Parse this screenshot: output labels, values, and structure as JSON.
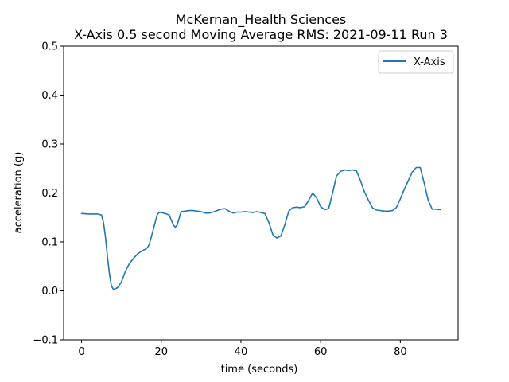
{
  "chart_data": {
    "type": "line",
    "title_line1": "McKernan_Health Sciences",
    "title_line2": "X-Axis 0.5 second Moving Average RMS: 2021-09-11 Run 3",
    "xlabel": "time (seconds)",
    "ylabel": "acceleration (g)",
    "xlim": [
      -4.5,
      94.5
    ],
    "ylim": [
      -0.1,
      0.5
    ],
    "xticks": [
      0,
      20,
      40,
      60,
      80
    ],
    "xtick_labels": [
      "0",
      "20",
      "40",
      "60",
      "80"
    ],
    "yticks": [
      -0.1,
      0.0,
      0.1,
      0.2,
      0.3,
      0.4,
      0.5
    ],
    "ytick_labels": [
      "−0.1",
      "0.0",
      "0.1",
      "0.2",
      "0.3",
      "0.4",
      "0.5"
    ],
    "grid": false,
    "legend_position": "upper right",
    "series": [
      {
        "name": "X-Axis",
        "color": "#1f77b4",
        "x": [
          0,
          2,
          4,
          5,
          5.5,
          6,
          6.5,
          7,
          7.5,
          8,
          9,
          10,
          11,
          12,
          13,
          14,
          15,
          16,
          16.5,
          17,
          18,
          19,
          19.5,
          20,
          21,
          22,
          23,
          23.5,
          24,
          25,
          26,
          27,
          28,
          29,
          30,
          31,
          32,
          33,
          34,
          35,
          36,
          37,
          38,
          39,
          40,
          41,
          42,
          43,
          44,
          45,
          46,
          47,
          48,
          49,
          50,
          51,
          52,
          53,
          54,
          55,
          56,
          57,
          58,
          59,
          60,
          61,
          62,
          63,
          64,
          65,
          66,
          67,
          68,
          69,
          70,
          71,
          72,
          73,
          74,
          75,
          76,
          77,
          78,
          79,
          80,
          81,
          82,
          83,
          84,
          85,
          86,
          87,
          88,
          89,
          90
        ],
        "y": [
          0.158,
          0.157,
          0.157,
          0.155,
          0.14,
          0.11,
          0.07,
          0.035,
          0.01,
          0.003,
          0.006,
          0.018,
          0.04,
          0.056,
          0.066,
          0.075,
          0.081,
          0.085,
          0.088,
          0.095,
          0.125,
          0.156,
          0.16,
          0.16,
          0.158,
          0.155,
          0.135,
          0.13,
          0.135,
          0.162,
          0.163,
          0.164,
          0.164,
          0.163,
          0.162,
          0.159,
          0.159,
          0.161,
          0.164,
          0.167,
          0.168,
          0.163,
          0.159,
          0.161,
          0.161,
          0.162,
          0.161,
          0.16,
          0.162,
          0.16,
          0.158,
          0.14,
          0.115,
          0.108,
          0.112,
          0.135,
          0.163,
          0.17,
          0.171,
          0.17,
          0.172,
          0.185,
          0.2,
          0.19,
          0.172,
          0.166,
          0.168,
          0.2,
          0.235,
          0.244,
          0.247,
          0.246,
          0.247,
          0.245,
          0.225,
          0.202,
          0.185,
          0.17,
          0.165,
          0.164,
          0.163,
          0.163,
          0.164,
          0.17,
          0.188,
          0.208,
          0.225,
          0.243,
          0.252,
          0.252,
          0.22,
          0.185,
          0.167,
          0.167,
          0.166
        ]
      }
    ]
  }
}
